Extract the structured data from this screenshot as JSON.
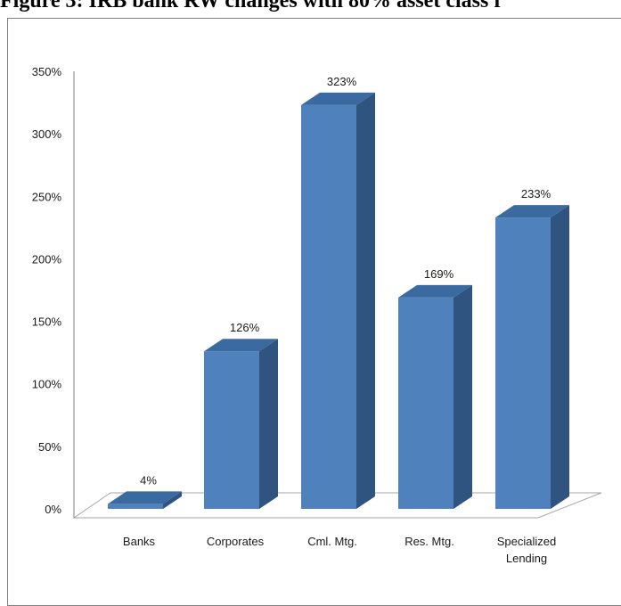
{
  "page": {
    "caption": "Figure 3: IRB bank RW changes with 80% asset class f"
  },
  "colors": {
    "bar_front": "#4f81bd",
    "bar_top": "#3b6aa0",
    "bar_side": "#2f5480",
    "floor_line": "#a6a6a6",
    "axis_line": "#7f7f7f"
  },
  "chart_data": {
    "type": "bar",
    "style": "3d-column",
    "categories": [
      "Banks",
      "Corporates",
      "Cml. Mtg.",
      "Res. Mtg.",
      "Specialized Lending"
    ],
    "category_labels": [
      [
        "Banks"
      ],
      [
        "Corporates"
      ],
      [
        "Cml. Mtg."
      ],
      [
        "Res. Mtg."
      ],
      [
        "Specialized",
        "Lending"
      ]
    ],
    "values": [
      4,
      126,
      323,
      169,
      233
    ],
    "data_labels": [
      "4%",
      "126%",
      "323%",
      "169%",
      "233%"
    ],
    "ylim": [
      0,
      350
    ],
    "yticks": [
      0,
      50,
      100,
      150,
      200,
      250,
      300,
      350
    ],
    "ytick_labels": [
      "0%",
      "50%",
      "100%",
      "150%",
      "200%",
      "250%",
      "300%",
      "350%"
    ],
    "grid": false,
    "legend": "none",
    "title": "",
    "xlabel": "",
    "ylabel": ""
  }
}
